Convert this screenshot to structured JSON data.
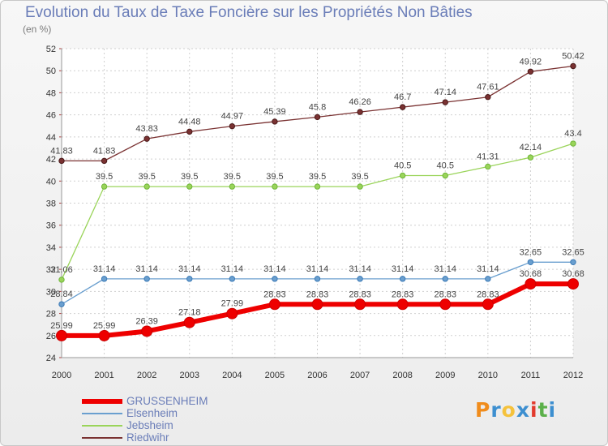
{
  "title": "Evolution du Taux de Taxe Foncière sur les Propriétés Non Bâties",
  "subtitle": "(en %)",
  "brand": {
    "letters": [
      "P",
      "r",
      "o",
      "x",
      "i",
      "t",
      "i"
    ],
    "colors": [
      "#f08c1c",
      "#3d8fd0",
      "#f5c23c",
      "#3d8fd0",
      "#e23b2e",
      "#5bb04a",
      "#3d8fd0"
    ]
  },
  "chart_data": {
    "type": "line",
    "title": "Evolution du Taux de Taxe Foncière sur les Propriétés Non Bâties",
    "ylabel": "(en %)",
    "xlabel": "",
    "x": [
      "2000",
      "2001",
      "2002",
      "2003",
      "2004",
      "2005",
      "2006",
      "2007",
      "2008",
      "2009",
      "2010",
      "2011",
      "2012"
    ],
    "ylim": [
      24,
      52
    ],
    "yticks": [
      24,
      26,
      28,
      30,
      32,
      34,
      36,
      38,
      40,
      42,
      44,
      46,
      48,
      50,
      52
    ],
    "grid": true,
    "legend_position": "bottom-left",
    "series": [
      {
        "name": "GRUSSENHEIM",
        "color": "#ee0000",
        "values": [
          25.99,
          25.99,
          26.39,
          27.18,
          27.99,
          28.83,
          28.83,
          28.83,
          28.83,
          28.83,
          28.83,
          30.68,
          30.68
        ],
        "labels": [
          "25.99",
          "25.99",
          "26.39",
          "27.18",
          "27.99",
          "28.83",
          "28.83",
          "28.83",
          "28.83",
          "28.83",
          "28.83",
          "30.68",
          "30.68"
        ]
      },
      {
        "name": "Elsenheim",
        "color": "#6a9fcf",
        "values": [
          28.84,
          31.14,
          31.14,
          31.14,
          31.14,
          31.14,
          31.14,
          31.14,
          31.14,
          31.14,
          31.14,
          32.65,
          32.65
        ],
        "labels": [
          "28.84",
          "31.14",
          "31.14",
          "31.14",
          "31.14",
          "31.14",
          "31.14",
          "31.14",
          "31.14",
          "31.14",
          "31.14",
          "32.65",
          "32.65"
        ]
      },
      {
        "name": "Jebsheim",
        "color": "#9ad45a",
        "values": [
          31.06,
          39.5,
          39.5,
          39.5,
          39.5,
          39.5,
          39.5,
          39.5,
          40.5,
          40.5,
          41.31,
          42.14,
          43.4
        ],
        "labels": [
          "31.06",
          "39.5",
          "39.5",
          "39.5",
          "39.5",
          "39.5",
          "39.5",
          "39.5",
          "40.5",
          "40.5",
          "41.31",
          "42.14",
          "43.4"
        ]
      },
      {
        "name": "Riedwihr",
        "color": "#7a3232",
        "values": [
          41.83,
          41.83,
          43.83,
          44.48,
          44.97,
          45.39,
          45.8,
          46.26,
          46.7,
          47.14,
          47.61,
          49.92,
          50.42
        ],
        "labels": [
          "41.83",
          "41.83",
          "43.83",
          "44.48",
          "44.97",
          "45.39",
          "45.8",
          "46.26",
          "46.7",
          "47.14",
          "47.61",
          "49.92",
          "50.42"
        ]
      }
    ]
  }
}
